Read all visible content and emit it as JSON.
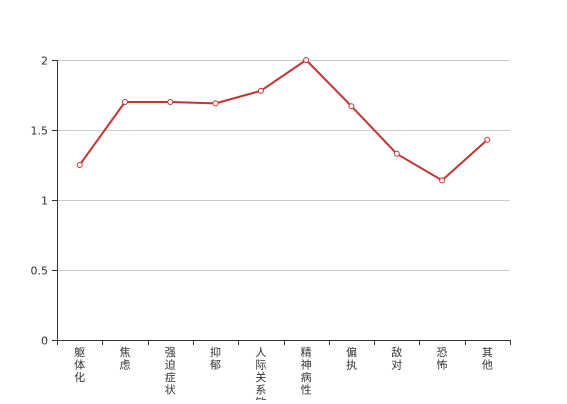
{
  "chart_data": {
    "type": "line",
    "categories": [
      "躯体化",
      "焦虑",
      "强迫症状",
      "抑郁",
      "人际关系敏感",
      "精神病性",
      "偏执",
      "敌对",
      "恐怖",
      "其他"
    ],
    "series": [
      {
        "values": [
          1.25,
          1.7,
          1.7,
          1.69,
          1.78,
          2.0,
          1.67,
          1.33,
          1.14,
          1.43
        ],
        "color": "#c23531"
      }
    ],
    "ylim": [
      0,
      2
    ],
    "yticks": [
      "0",
      "0.5",
      "1",
      "1.5",
      "2"
    ],
    "grid": true,
    "title": "",
    "xlabel": "",
    "ylabel": ""
  }
}
